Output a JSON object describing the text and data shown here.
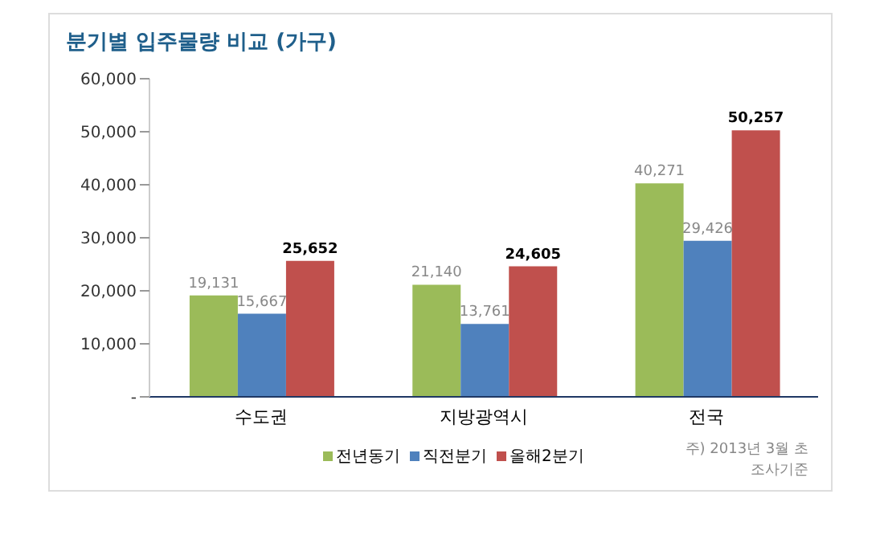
{
  "chart_data": {
    "type": "bar",
    "title": "분기별 입주물량 비교 (가구)",
    "categories": [
      "수도권",
      "지방광역시",
      "전국"
    ],
    "series": [
      {
        "name": "전년동기",
        "color": "#9bbb59",
        "values": [
          19131,
          21140,
          40271
        ],
        "value_labels": [
          "19,131",
          "21,140",
          "40,271"
        ]
      },
      {
        "name": "직전분기",
        "color": "#4f81bd",
        "values": [
          15667,
          13761,
          29426
        ],
        "value_labels": [
          "15,667",
          "13,761",
          "29,426"
        ]
      },
      {
        "name": "올해2분기",
        "color": "#c0504d",
        "values": [
          25652,
          24605,
          50257
        ],
        "value_labels": [
          "25,652",
          "24,605",
          "50,257"
        ]
      }
    ],
    "ylim": [
      0,
      60000
    ],
    "yticks": [
      {
        "value": 0,
        "label": "-"
      },
      {
        "value": 10000,
        "label": "10,000"
      },
      {
        "value": 20000,
        "label": "20,000"
      },
      {
        "value": 30000,
        "label": "30,000"
      },
      {
        "value": 40000,
        "label": "40,000"
      },
      {
        "value": 50000,
        "label": "50,000"
      },
      {
        "value": 60000,
        "label": "60,000"
      }
    ],
    "legend": "bottom",
    "annotations": [
      "주) 2013년 3월 초\n조사기준"
    ]
  }
}
